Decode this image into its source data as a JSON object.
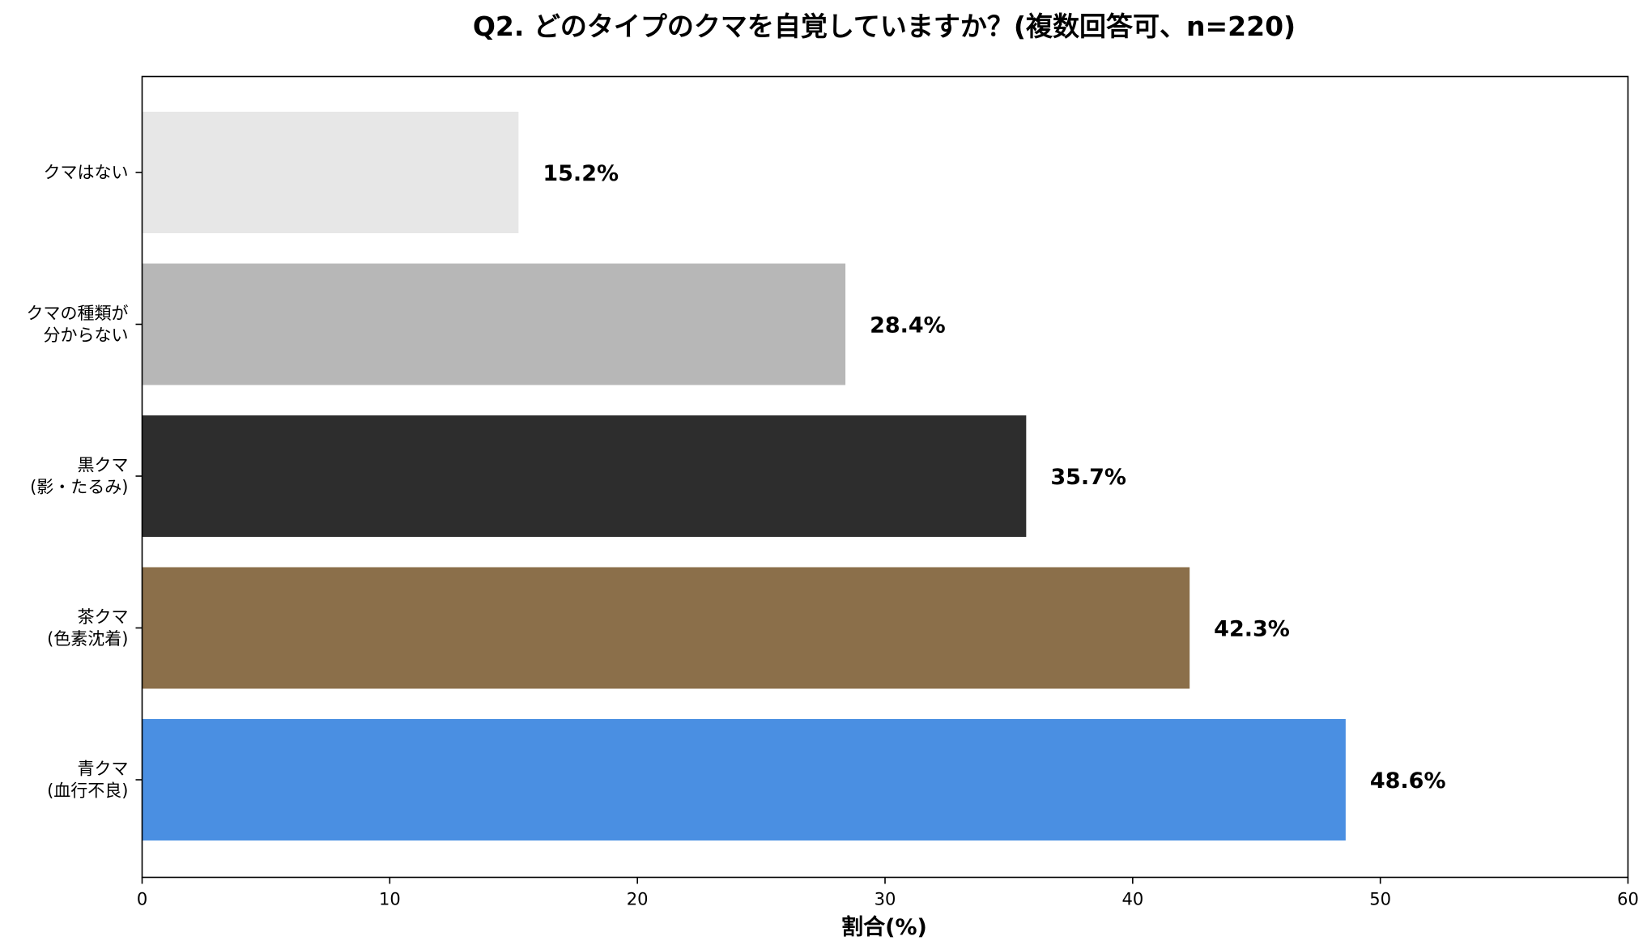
{
  "chart_data": {
    "type": "bar",
    "orientation": "horizontal",
    "title": "Q2. どのタイプのクマを自覚していますか？(複数回答可、n=220)",
    "xlabel": "割合(%)",
    "ylabel": "",
    "xlim": [
      0,
      60
    ],
    "x_ticks": [
      0,
      10,
      20,
      30,
      40,
      50,
      60
    ],
    "grid": false,
    "categories": [
      [
        "クマはない"
      ],
      [
        "クマの種類が",
        "分からない"
      ],
      [
        "黒クマ",
        "(影・たるみ)"
      ],
      [
        "茶クマ",
        "(色素沈着)"
      ],
      [
        "青クマ",
        "(血行不良)"
      ]
    ],
    "values": [
      15.2,
      28.4,
      35.7,
      42.3,
      48.6
    ],
    "data_labels": [
      "15.2%",
      "28.4%",
      "35.7%",
      "42.3%",
      "48.6%"
    ],
    "colors": [
      "#e7e7e7",
      "#b7b7b7",
      "#2d2d2d",
      "#8b6f4a",
      "#4a8fe2"
    ]
  }
}
